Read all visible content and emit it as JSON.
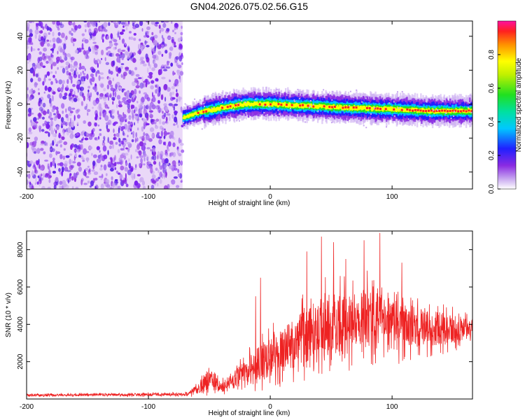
{
  "title": "GN04.2026.075.02.56.G15",
  "chart_data": [
    {
      "type": "heatmap",
      "name": "spectrogram",
      "xlabel": "Height of straight line (km)",
      "ylabel": "Frequency (Hz)",
      "xlim": [
        -200,
        166
      ],
      "ylim": [
        -50,
        49
      ],
      "xticks": [
        -200,
        -100,
        0,
        100
      ],
      "yticks": [
        -40,
        -20,
        0,
        20,
        40
      ],
      "noise_region_end_km": -72,
      "signal_start_km": -72,
      "signal_track": [
        {
          "x": -72,
          "y": -8
        },
        {
          "x": -60,
          "y": -5
        },
        {
          "x": -40,
          "y": -2
        },
        {
          "x": -20,
          "y": 0
        },
        {
          "x": 0,
          "y": 0
        },
        {
          "x": 30,
          "y": -1
        },
        {
          "x": 60,
          "y": -2
        },
        {
          "x": 100,
          "y": -3
        },
        {
          "x": 130,
          "y": -4
        },
        {
          "x": 166,
          "y": -4
        }
      ],
      "colorbar": {
        "label": "Normalized spectral amplitude",
        "range": [
          0,
          1
        ],
        "ticks": [
          "0.0",
          "0.2",
          "0.4",
          "0.6",
          "0.8"
        ]
      }
    },
    {
      "type": "line",
      "name": "snr",
      "color": "#ee2222",
      "xlabel": "Height of straight line (km)",
      "ylabel": "SNR (10 * v/v)",
      "xlim": [
        -200,
        166
      ],
      "ylim": [
        0,
        9000
      ],
      "xticks": [
        -200,
        -100,
        0,
        100
      ],
      "yticks": [
        2000,
        4000,
        6000,
        8000
      ],
      "envelope": [
        {
          "x": -200,
          "mean": 200,
          "spread": 100
        },
        {
          "x": -70,
          "mean": 250,
          "spread": 120
        },
        {
          "x": -60,
          "mean": 500,
          "spread": 400
        },
        {
          "x": -50,
          "mean": 1100,
          "spread": 900
        },
        {
          "x": -40,
          "mean": 600,
          "spread": 500
        },
        {
          "x": -30,
          "mean": 1000,
          "spread": 800
        },
        {
          "x": -20,
          "mean": 1400,
          "spread": 1200
        },
        {
          "x": -10,
          "mean": 1800,
          "spread": 1600
        },
        {
          "x": 0,
          "mean": 2300,
          "spread": 1800
        },
        {
          "x": 20,
          "mean": 3000,
          "spread": 2200
        },
        {
          "x": 40,
          "mean": 3800,
          "spread": 2600
        },
        {
          "x": 60,
          "mean": 4200,
          "spread": 2800
        },
        {
          "x": 80,
          "mean": 4300,
          "spread": 2600
        },
        {
          "x": 100,
          "mean": 4000,
          "spread": 2300
        },
        {
          "x": 130,
          "mean": 3800,
          "spread": 1600
        },
        {
          "x": 166,
          "mean": 3700,
          "spread": 1000
        }
      ],
      "peaks": [
        {
          "x": 30,
          "y": 8800
        },
        {
          "x": 42,
          "y": 8700
        },
        {
          "x": 90,
          "y": 8900
        },
        {
          "x": 52,
          "y": 8400
        },
        {
          "x": 77,
          "y": 8500
        },
        {
          "x": 30,
          "y": 7900
        },
        {
          "x": 62,
          "y": 7500
        },
        {
          "x": 108,
          "y": 7300
        },
        {
          "x": -8,
          "y": 6500
        },
        {
          "x": -12,
          "y": 5500
        }
      ]
    }
  ]
}
